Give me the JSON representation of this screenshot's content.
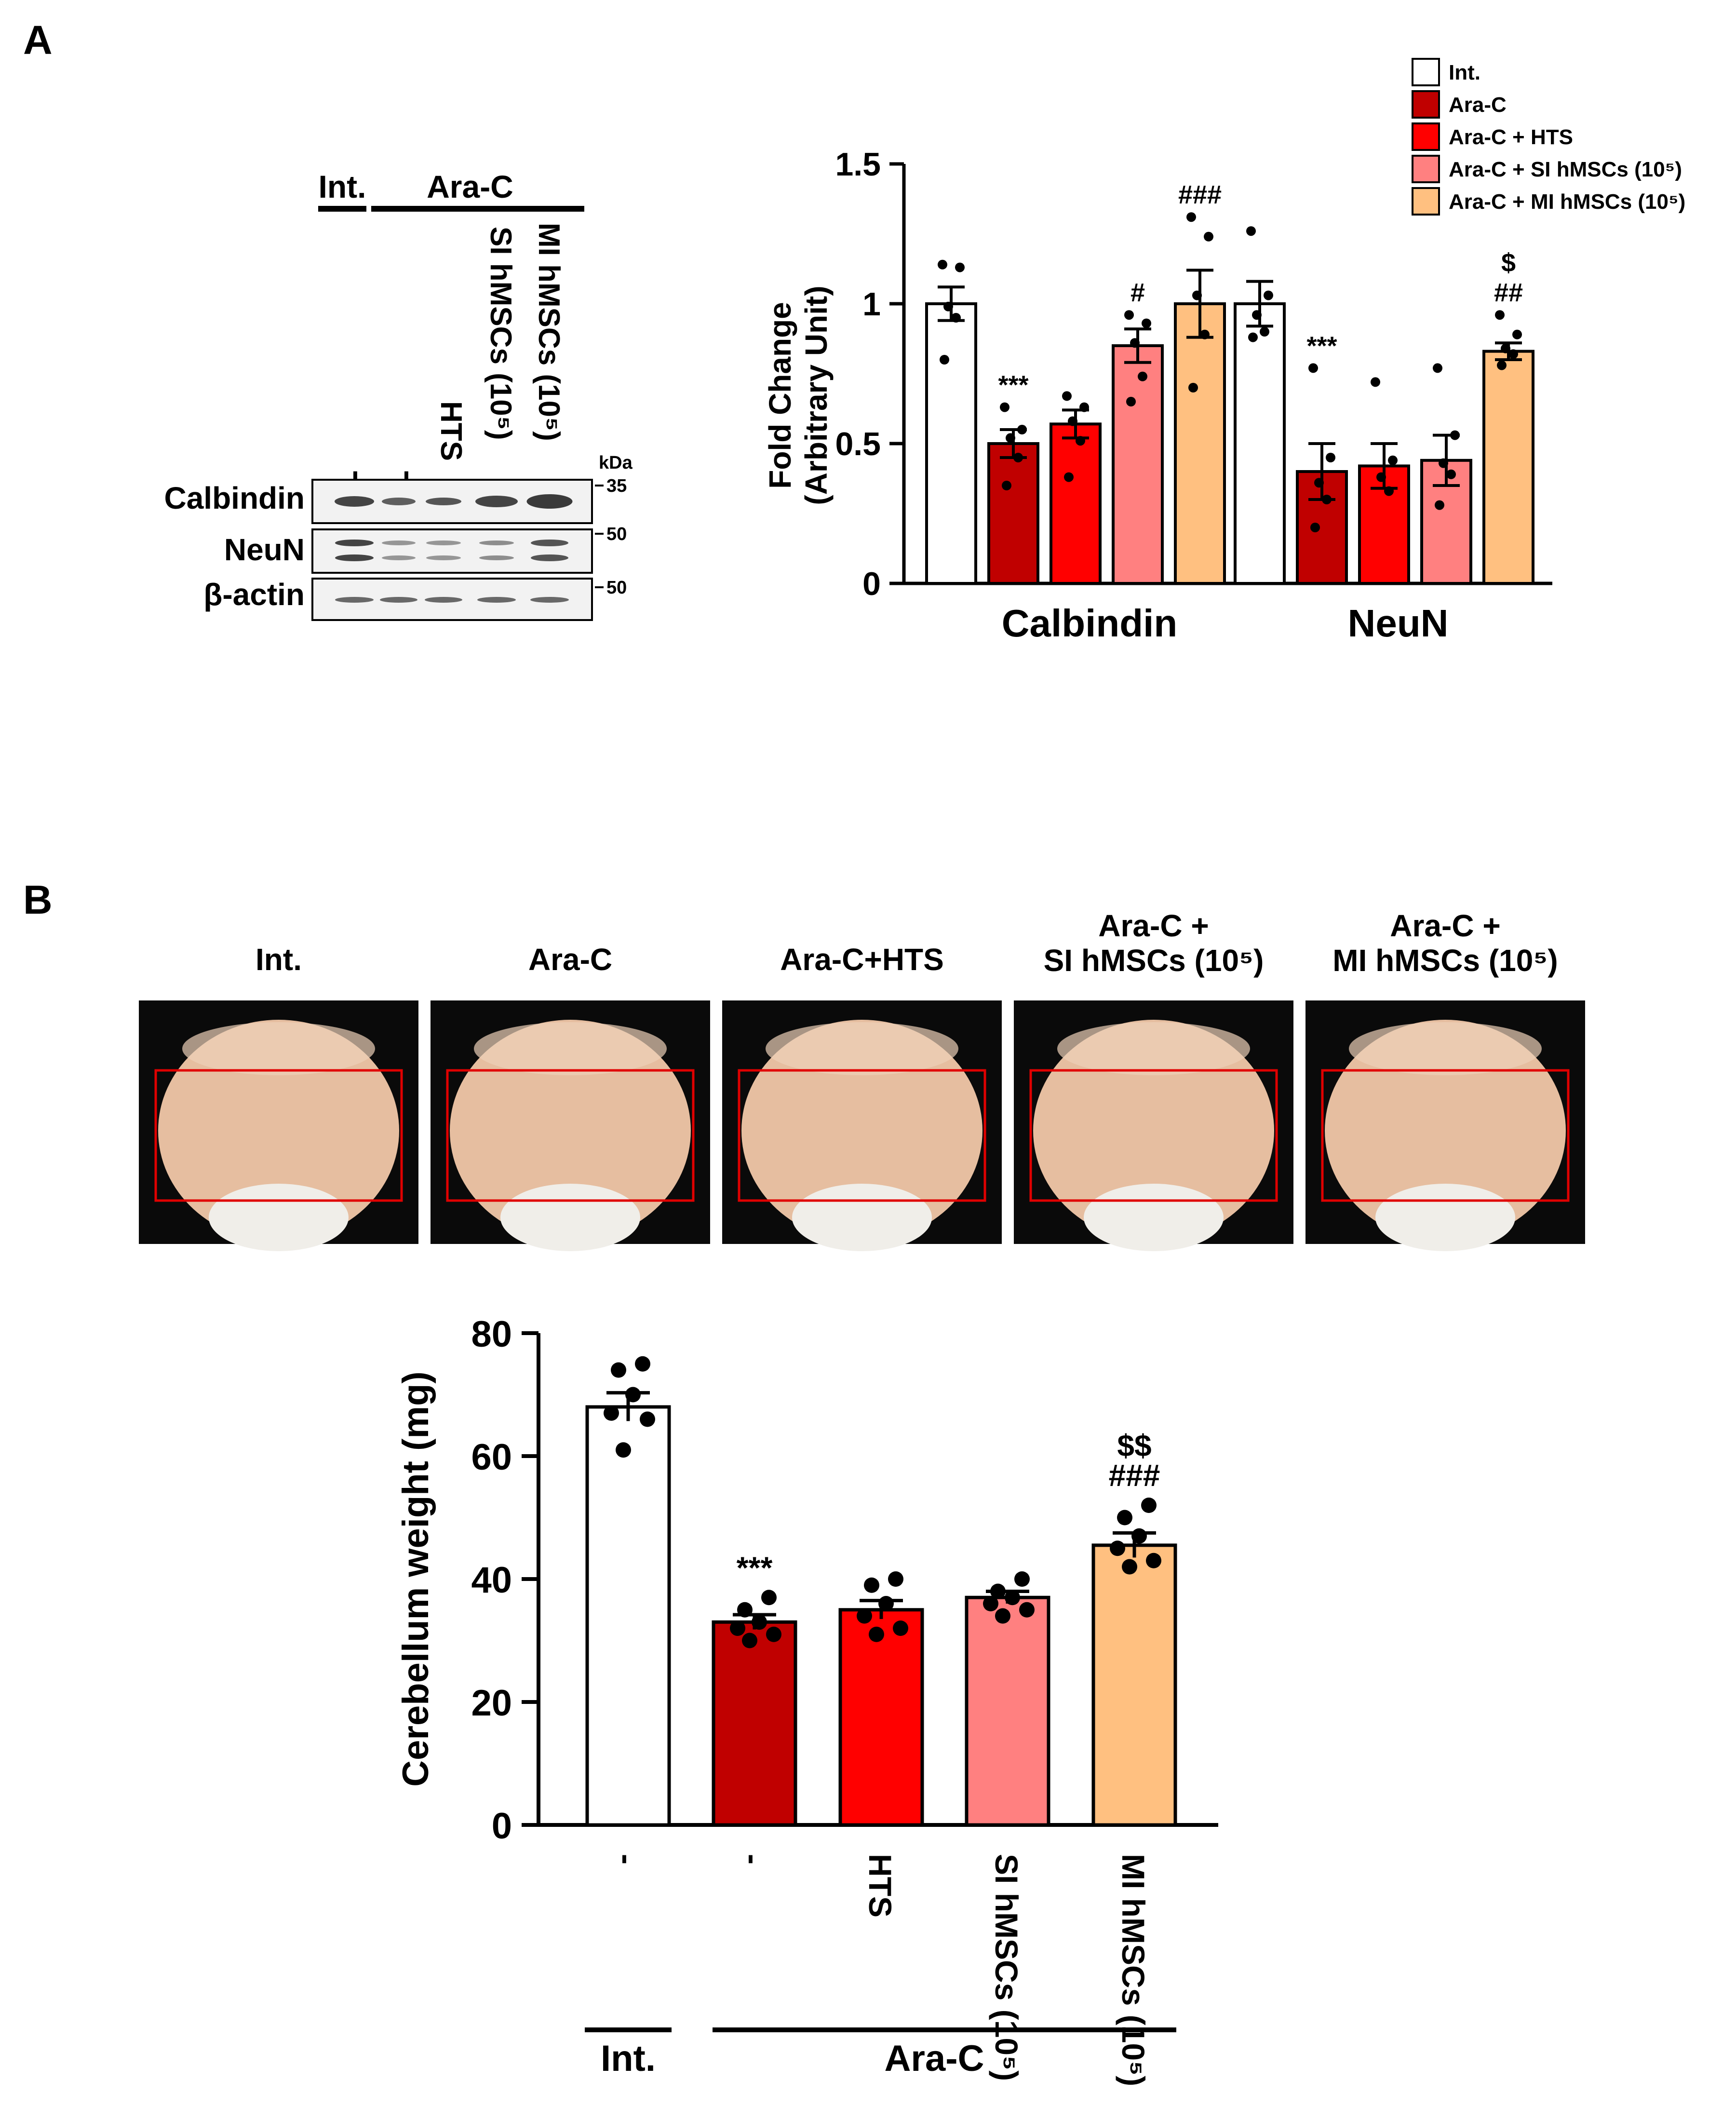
{
  "colors": {
    "int": "#ffffff",
    "arac": "#c00000",
    "hts": "#ff0000",
    "si": "#ff8080",
    "mi": "#ffc080",
    "gel_bg": "#f2f2f2",
    "band": "#3a3a3a",
    "photo_bg": "#0a0a0a",
    "brain": "#e6bea0",
    "roi": "#e00000"
  },
  "panel_a": {
    "label": "A",
    "western": {
      "group_int": "Int.",
      "group_arac": "Ara-C",
      "lanes": [
        "-",
        "-",
        "HTS",
        "SI hMSCs (10⁵)",
        "MI hMSCs (10⁵)"
      ],
      "kda_label": "kDa",
      "rows": [
        {
          "name": "Calbindin",
          "marker": "35"
        },
        {
          "name": "NeuN",
          "marker": "50"
        },
        {
          "name": "β-actin",
          "marker": "50"
        }
      ]
    }
  },
  "panel_b": {
    "label": "B",
    "photo_titles": [
      [
        "Int."
      ],
      [
        "Ara-C"
      ],
      [
        "Ara-C+HTS"
      ],
      [
        "Ara-C +",
        "SI hMSCs (10⁵)"
      ],
      [
        "Ara-C +",
        "MI hMSCs (10⁵)"
      ]
    ],
    "xcats": [
      "-",
      "-",
      "HTS",
      "SI hMSCs (10⁵)",
      "MI hMSCs (10⁵)"
    ],
    "group_int": "Int.",
    "group_arac": "Ara-C"
  },
  "chart_data": [
    {
      "type": "bar",
      "title": "",
      "ylabel": "Fold Change (Arbitrary Unit)",
      "ylabel_lines": [
        "Fold Change",
        "(Arbitrary Unit)"
      ],
      "xlabel": "",
      "ylim": [
        0,
        1.5
      ],
      "yticks": [
        0,
        0.5,
        1,
        1.5
      ],
      "ytick_labels": [
        "0",
        "0.5",
        "1",
        "1.5"
      ],
      "categories": [
        "Calbindin",
        "NeuN"
      ],
      "legend": [
        "Int.",
        "Ara-C",
        "Ara-C + HTS",
        "Ara-C + SI hMSCs (10⁵)",
        "Ara-C + MI hMSCs (10⁵)"
      ],
      "legend_position": "top-right",
      "series": [
        {
          "name": "Int.",
          "values": [
            1.0,
            1.0
          ],
          "sem": [
            0.06,
            0.08
          ],
          "points": [
            [
              1.14,
              1.13,
              0.99,
              0.95,
              0.8
            ],
            [
              1.26,
              1.03,
              0.96,
              0.9,
              0.88
            ]
          ],
          "annotations": [
            "",
            ""
          ]
        },
        {
          "name": "Ara-C",
          "values": [
            0.5,
            0.4
          ],
          "sem": [
            0.05,
            0.1
          ],
          "points": [
            [
              0.63,
              0.55,
              0.52,
              0.45,
              0.35
            ],
            [
              0.77,
              0.45,
              0.36,
              0.3,
              0.2
            ]
          ],
          "annotations": [
            "***",
            "***"
          ]
        },
        {
          "name": "Ara-C + HTS",
          "values": [
            0.57,
            0.42
          ],
          "sem": [
            0.05,
            0.08
          ],
          "points": [
            [
              0.67,
              0.63,
              0.58,
              0.51,
              0.38
            ],
            [
              0.72,
              0.44,
              0.38,
              0.33
            ]
          ],
          "annotations": [
            "",
            ""
          ]
        },
        {
          "name": "Ara-C + SI hMSCs (10⁵)",
          "values": [
            0.85,
            0.44
          ],
          "sem": [
            0.06,
            0.09
          ],
          "points": [
            [
              0.96,
              0.93,
              0.86,
              0.74,
              0.65
            ],
            [
              0.77,
              0.53,
              0.43,
              0.39,
              0.28
            ]
          ],
          "annotations": [
            "#",
            ""
          ]
        },
        {
          "name": "Ara-C + MI hMSCs (10⁵)",
          "values": [
            1.0,
            0.83
          ],
          "sem": [
            0.12,
            0.03
          ],
          "points": [
            [
              1.31,
              1.24,
              1.03,
              0.89,
              0.7
            ],
            [
              0.96,
              0.89,
              0.84,
              0.82,
              0.78
            ]
          ],
          "annotations": [
            "###",
            "$|##"
          ]
        }
      ]
    },
    {
      "type": "bar",
      "title": "",
      "ylabel": "Cerebellum weight (mg)",
      "xlabel": "",
      "ylim": [
        0,
        80
      ],
      "yticks": [
        0,
        20,
        40,
        60,
        80
      ],
      "categories": [
        "Int.",
        "Ara-C",
        "Ara-C + HTS",
        "Ara-C + SI hMSCs (10⁵)",
        "Ara-C + MI hMSCs (10⁵)"
      ],
      "values": [
        68,
        33,
        35,
        37,
        45.5
      ],
      "sem": [
        2.3,
        1.2,
        1.5,
        1.0,
        2.0
      ],
      "points": [
        [
          75,
          74,
          70,
          67,
          66,
          61
        ],
        [
          37,
          35,
          33,
          32,
          31,
          30
        ],
        [
          40,
          39,
          36,
          34,
          32,
          31
        ],
        [
          40,
          38,
          37,
          36,
          35,
          34
        ],
        [
          52,
          50,
          47,
          45,
          43,
          42
        ]
      ],
      "annotations": [
        "",
        "***",
        "",
        "",
        "$$|###"
      ]
    }
  ]
}
